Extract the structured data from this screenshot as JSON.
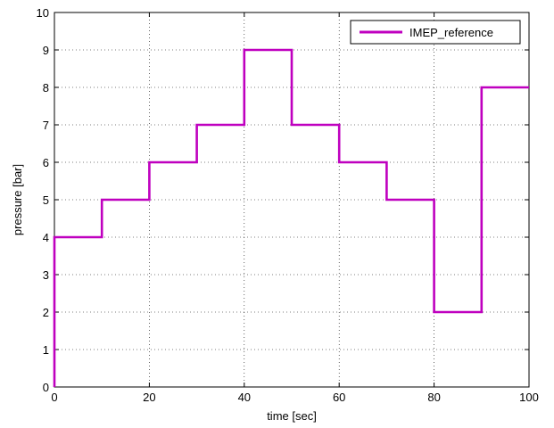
{
  "chart_data": {
    "type": "line",
    "title": "",
    "xlabel": "time [sec]",
    "ylabel": "pressure [bar]",
    "xlim": [
      0,
      100
    ],
    "ylim": [
      0,
      10
    ],
    "x_ticks": [
      0,
      20,
      40,
      60,
      80,
      100
    ],
    "y_ticks": [
      0,
      1,
      2,
      3,
      4,
      5,
      6,
      7,
      8,
      9,
      10
    ],
    "grid": true,
    "legend_position": "top-right",
    "series": [
      {
        "name": "IMEP_reference",
        "color": "#bf00bf",
        "step": true,
        "x": [
          0,
          0,
          10,
          10,
          20,
          20,
          30,
          30,
          40,
          40,
          50,
          50,
          60,
          60,
          70,
          70,
          80,
          80,
          90,
          90,
          100
        ],
        "y": [
          0,
          4,
          4,
          5,
          5,
          6,
          6,
          7,
          7,
          9,
          9,
          7,
          7,
          6,
          6,
          5,
          5,
          2,
          2,
          8,
          8
        ]
      }
    ]
  }
}
